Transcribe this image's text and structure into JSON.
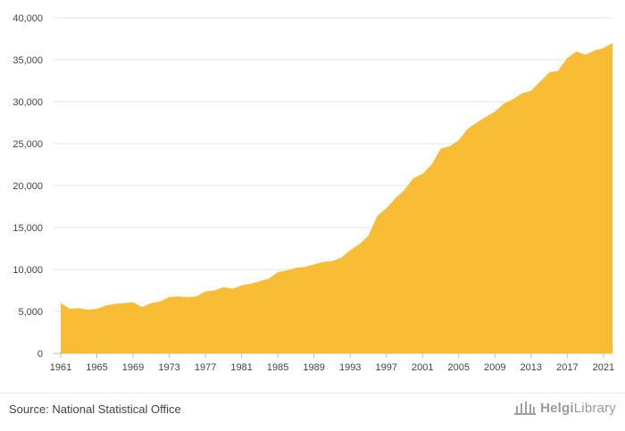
{
  "chart_data": {
    "type": "area",
    "x": [
      1961,
      1962,
      1963,
      1964,
      1965,
      1966,
      1967,
      1968,
      1969,
      1970,
      1971,
      1972,
      1973,
      1974,
      1975,
      1976,
      1977,
      1978,
      1979,
      1980,
      1981,
      1982,
      1983,
      1984,
      1985,
      1986,
      1987,
      1988,
      1989,
      1990,
      1991,
      1992,
      1993,
      1994,
      1995,
      1996,
      1997,
      1998,
      1999,
      2000,
      2001,
      2002,
      2003,
      2004,
      2005,
      2006,
      2007,
      2008,
      2009,
      2010,
      2011,
      2012,
      2013,
      2014,
      2015,
      2016,
      2017,
      2018,
      2019,
      2020,
      2021,
      2022
    ],
    "values": [
      6000,
      5300,
      5400,
      5200,
      5300,
      5700,
      5900,
      6000,
      6100,
      5500,
      6000,
      6200,
      6700,
      6800,
      6700,
      6800,
      7400,
      7500,
      7900,
      7700,
      8100,
      8300,
      8600,
      8900,
      9700,
      9900,
      10200,
      10300,
      10600,
      10900,
      11000,
      11400,
      12300,
      13000,
      14000,
      16400,
      17300,
      18500,
      19500,
      20900,
      21400,
      22500,
      24400,
      24700,
      25400,
      26800,
      27500,
      28200,
      28800,
      29800,
      30300,
      31000,
      31300,
      32400,
      33500,
      33700,
      35200,
      36000,
      35600,
      36100,
      36400,
      37000
    ],
    "x_tick_labels": [
      "1961",
      "1965",
      "1969",
      "1973",
      "1977",
      "1981",
      "1985",
      "1989",
      "1993",
      "1997",
      "2001",
      "2005",
      "2009",
      "2013",
      "2017",
      "2021"
    ],
    "y_tick_labels": [
      "0",
      "5,000",
      "10,000",
      "15,000",
      "20,000",
      "25,000",
      "30,000",
      "35,000",
      "40,000"
    ],
    "ylim": [
      0,
      40000
    ],
    "xlim": [
      1961,
      2022
    ],
    "grid": true,
    "colors": {
      "fill": "#f9bd35",
      "grid": "#e6e6e6",
      "axis": "#bdbdbd"
    },
    "title": "",
    "xlabel": "",
    "ylabel": ""
  },
  "footer": {
    "source": "Source: National Statistical Office",
    "brand_bold": "Helgi",
    "brand_rest": "Library",
    "brand_icon": "bank-building-icon"
  }
}
